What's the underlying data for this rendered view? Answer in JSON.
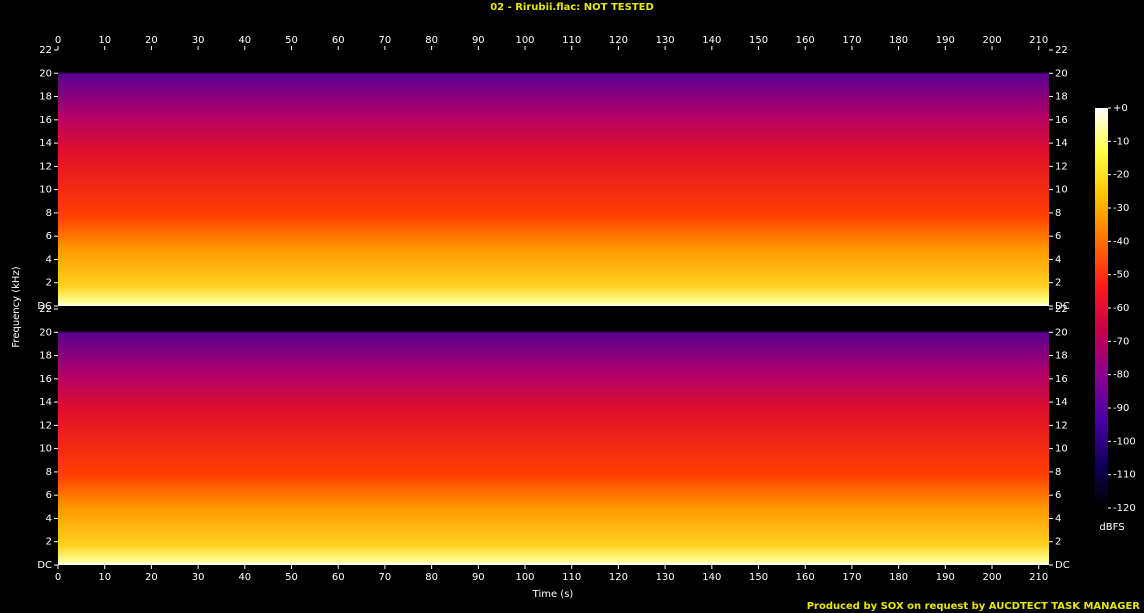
{
  "chart_data": {
    "type": "spectrogram",
    "title": "02 - Rirubii.flac: NOT TESTED",
    "xlabel": "Time (s)",
    "ylabel": "Frequency (kHz)",
    "xlim": [
      0,
      212.2
    ],
    "xticks": [
      0,
      10,
      20,
      30,
      40,
      50,
      60,
      70,
      80,
      90,
      100,
      110,
      120,
      130,
      140,
      150,
      160,
      170,
      180,
      190,
      200,
      210
    ],
    "ylim": [
      0,
      22
    ],
    "yticks": [
      {
        "value": 0,
        "label": "DC"
      },
      2,
      4,
      6,
      8,
      10,
      12,
      14,
      16,
      18,
      20,
      22
    ],
    "channels": 2,
    "colorbar": {
      "label": "dBFS",
      "lim": [
        -120,
        0
      ],
      "ticks": [
        {
          "value": 0,
          "label": "+0"
        },
        -10,
        -20,
        -30,
        -40,
        -50,
        -60,
        -70,
        -80,
        -90,
        -100,
        -110,
        -120
      ],
      "colormap": [
        "#ffffff",
        "#ffff40",
        "#ffc000",
        "#ff7000",
        "#ff1a1a",
        "#c8004a",
        "#8a0090",
        "#4a00a8",
        "#10005a",
        "#000000"
      ]
    },
    "footer": "Produced by SOX on request by AUCDTECT TASK MANAGER"
  }
}
